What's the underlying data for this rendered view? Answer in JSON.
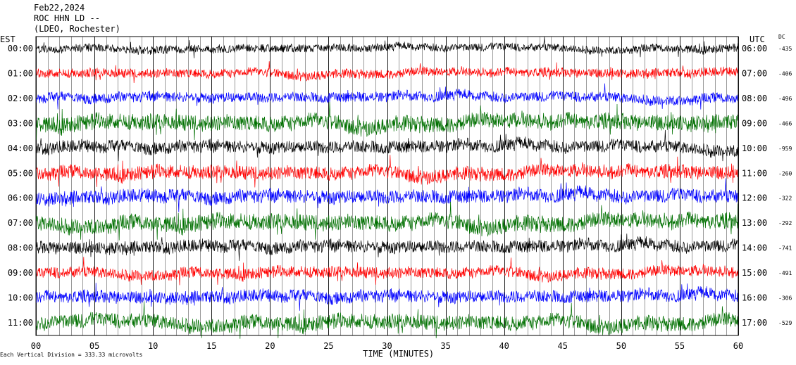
{
  "header": {
    "date": "Feb22,2024",
    "station": "ROC HHN LD --",
    "location": "(LDEO, Rochester)"
  },
  "labels": {
    "left_timezone": "EST",
    "right_timezone": "UTC",
    "dc_header": "DC",
    "footnote": "Each Vertical Division =  333.33 microvolts"
  },
  "chart_data": {
    "type": "line",
    "title": "",
    "xlabel": "TIME (MINUTES)",
    "ylabel": "",
    "xlim": [
      0,
      60
    ],
    "x_ticks": [
      "00",
      "05",
      "10",
      "15",
      "20",
      "25",
      "30",
      "35",
      "40",
      "45",
      "50",
      "55",
      "60"
    ],
    "grid": true,
    "trace_colors": [
      "#000000",
      "#ff0000",
      "#0000ff",
      "#007000"
    ],
    "rows": [
      {
        "est": "00:00",
        "utc": "06:00",
        "dc": "-435",
        "amplitude": 0.35
      },
      {
        "est": "01:00",
        "utc": "07:00",
        "dc": "-406",
        "amplitude": 0.4
      },
      {
        "est": "02:00",
        "utc": "08:00",
        "dc": "-496",
        "amplitude": 0.45
      },
      {
        "est": "03:00",
        "utc": "09:00",
        "dc": "-466",
        "amplitude": 0.7
      },
      {
        "est": "04:00",
        "utc": "10:00",
        "dc": "-959",
        "amplitude": 0.55
      },
      {
        "est": "05:00",
        "utc": "11:00",
        "dc": "-260",
        "amplitude": 0.6
      },
      {
        "est": "06:00",
        "utc": "12:00",
        "dc": "-322",
        "amplitude": 0.6
      },
      {
        "est": "07:00",
        "utc": "13:00",
        "dc": "-292",
        "amplitude": 0.7
      },
      {
        "est": "08:00",
        "utc": "14:00",
        "dc": "-741",
        "amplitude": 0.55
      },
      {
        "est": "09:00",
        "utc": "15:00",
        "dc": "-491",
        "amplitude": 0.5
      },
      {
        "est": "10:00",
        "utc": "16:00",
        "dc": "-306",
        "amplitude": 0.55
      },
      {
        "est": "11:00",
        "utc": "17:00",
        "dc": "-529",
        "amplitude": 0.65
      }
    ]
  }
}
